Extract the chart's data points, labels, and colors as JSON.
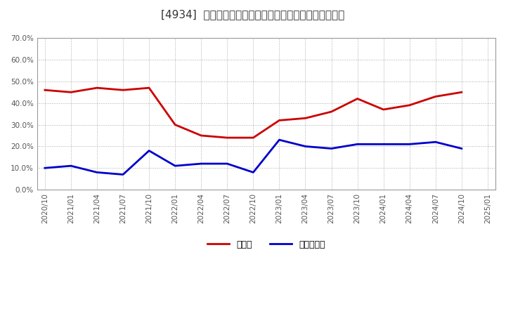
{
  "title": "[4934]  現須金、有利子負債の総資産に対する比率の推移",
  "x_labels": [
    "2020/10",
    "2021/01",
    "2021/04",
    "2021/07",
    "2021/10",
    "2022/01",
    "2022/04",
    "2022/07",
    "2022/10",
    "2023/01",
    "2023/04",
    "2023/07",
    "2023/10",
    "2024/01",
    "2024/04",
    "2024/07",
    "2024/10",
    "2025/01"
  ],
  "cash_ratio": [
    0.46,
    0.45,
    0.47,
    0.46,
    0.47,
    0.3,
    0.25,
    0.24,
    0.24,
    0.32,
    0.33,
    0.36,
    0.42,
    0.37,
    0.39,
    0.43,
    0.45,
    null
  ],
  "debt_ratio": [
    0.1,
    0.11,
    0.08,
    0.07,
    0.18,
    0.11,
    0.12,
    0.12,
    0.08,
    0.23,
    0.2,
    0.19,
    0.21,
    0.21,
    0.21,
    0.22,
    0.19,
    null
  ],
  "cash_color": "#cc0000",
  "debt_color": "#0000cc",
  "ylim": [
    0.0,
    0.7
  ],
  "yticks": [
    0.0,
    0.1,
    0.2,
    0.3,
    0.4,
    0.5,
    0.6,
    0.7
  ],
  "legend_cash": "現須金",
  "legend_debt": "有利子負債",
  "background_color": "#ffffff",
  "grid_color": "#aaaaaa",
  "title_fontsize": 11,
  "tick_fontsize": 7.5,
  "legend_fontsize": 9
}
